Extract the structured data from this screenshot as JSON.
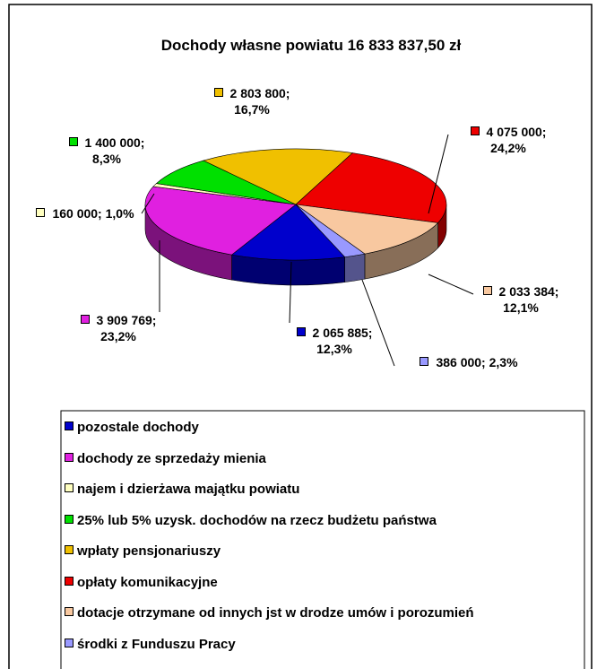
{
  "chart_data": {
    "type": "pie",
    "title": "Dochody własne powiatu 16 833 837,50 zł",
    "categories": [
      "pozostale dochody",
      "dochody ze sprzedaży mienia",
      "najem i  dzierżawa majątku powiatu",
      "25% lub 5% uzysk. dochodów na rzecz budżetu państwa",
      "wpłaty pensjonariuszy",
      "opłaty komunikacyjne",
      "dotacje otrzymane od innych jst w drodze umów i porozumień",
      "środki z Funduszu Pracy"
    ],
    "values": [
      2065885,
      3909769,
      160000,
      1400000,
      2803800,
      4075000,
      2033384,
      386000
    ],
    "value_labels": [
      "2 065 885; 12,3%",
      "3 909 769; 23,2%",
      "160 000; 1,0%",
      "1 400 000; 8,3%",
      "2 803 800; 16,7%",
      "4 075 000; 24,2%",
      "2 033 384; 12,1%",
      "386 000; 2,3%"
    ],
    "colors": [
      "#0000cc",
      "#e020e0",
      "#ffffc0",
      "#00e000",
      "#f0c000",
      "#ee0000",
      "#f8c8a0",
      "#9999ff"
    ]
  }
}
